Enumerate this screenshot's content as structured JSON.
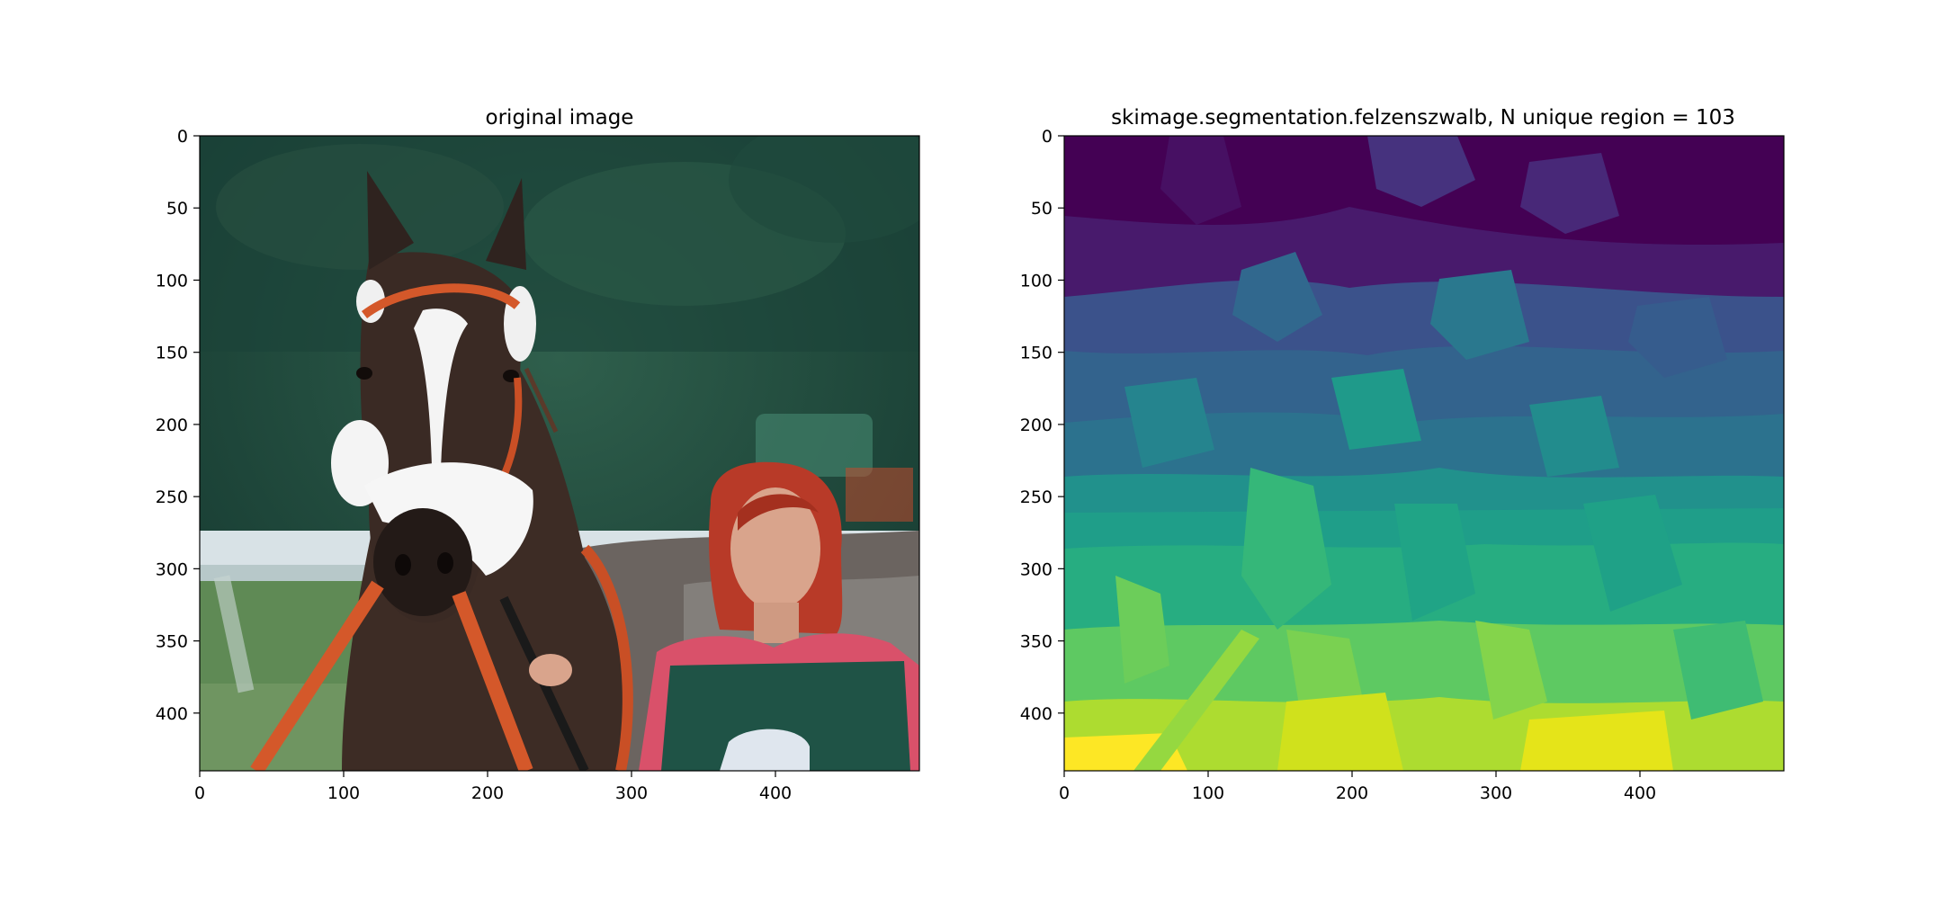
{
  "figure": {
    "background": "#ffffff",
    "axis_color": "#000000"
  },
  "chart_data": [
    {
      "type": "image",
      "title": "original image",
      "image_kind": "photo",
      "content": "horse-with-handler",
      "xlim": [
        0,
        500
      ],
      "ylim": [
        440,
        0
      ],
      "xticks": [
        0,
        100,
        200,
        300,
        400
      ],
      "yticks": [
        0,
        50,
        100,
        150,
        200,
        250,
        300,
        350,
        400
      ],
      "colors": {
        "background_trees": "#1e4a3c",
        "fence": "#d8e2e6",
        "grass": "#5f8a55",
        "horse_body": "#3d2c25",
        "blaze": "#f4f4f4",
        "noseband": "#f2f2f2",
        "bridle": "#d4582a",
        "hair": "#b83a28",
        "skin": "#d9a48c",
        "vest": "#1f5346",
        "shirt": "#d9516a"
      }
    },
    {
      "type": "image",
      "title": "skimage.segmentation.felzenszwalb, N unique region = 103",
      "image_kind": "segmentation",
      "colormap": "viridis",
      "n_regions": 103,
      "xlim": [
        0,
        500
      ],
      "ylim": [
        440,
        0
      ],
      "xticks": [
        0,
        100,
        200,
        300,
        400
      ],
      "yticks": [
        0,
        50,
        100,
        150,
        200,
        250,
        300,
        350,
        400
      ]
    }
  ]
}
